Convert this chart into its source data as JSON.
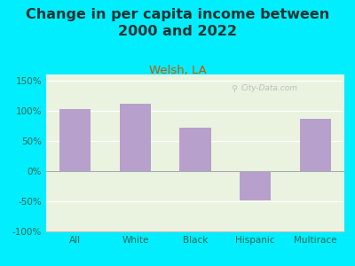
{
  "title": "Change in per capita income between\n2000 and 2022",
  "subtitle": "Welsh, LA",
  "categories": [
    "All",
    "White",
    "Black",
    "Hispanic",
    "Multirace"
  ],
  "values": [
    102,
    112,
    72,
    -48,
    86
  ],
  "bar_color": "#b8a0cc",
  "title_fontsize": 11.5,
  "subtitle_fontsize": 9.5,
  "subtitle_color": "#cc5500",
  "title_color": "#1a3333",
  "tick_label_color": "#2a6655",
  "background_outer": "#00eeff",
  "ylim": [
    -100,
    160
  ],
  "yticks": [
    -100,
    -50,
    0,
    50,
    100,
    150
  ],
  "ytick_labels": [
    "-100%",
    "-50%",
    "0%",
    "50%",
    "100%",
    "150%"
  ],
  "watermark": "City-Data.com",
  "plot_bg": "#eaf3e0"
}
